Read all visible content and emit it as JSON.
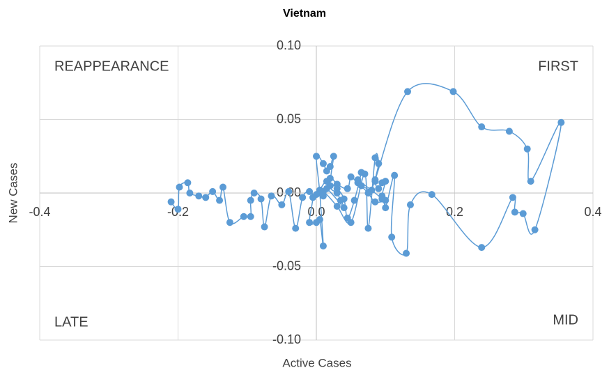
{
  "chart_data": {
    "type": "scatter",
    "title": "Vietnam",
    "x_label": "Active Cases",
    "y_label": "New Cases",
    "annotations": [
      "REAPPEARANCE",
      "FIRST",
      "LATE",
      "MID"
    ],
    "xlim": [
      -0.4,
      0.4
    ],
    "ylim": [
      -0.1,
      0.1
    ],
    "xticks": [
      -0.4,
      -0.2,
      {
        "value": 0,
        "label": "0.0"
      },
      0.2,
      0.4
    ],
    "yticks": [
      {
        "value": 0.1,
        "label": "0.10"
      },
      {
        "value": 0.05,
        "label": "0.05"
      },
      {
        "value": 0,
        "label": "0.00"
      },
      {
        "value": -0.05,
        "label": "-0.05"
      },
      {
        "value": -0.1,
        "label": "-0.10"
      }
    ],
    "grid": true,
    "smooth": true,
    "series": [
      {
        "color": "#5b9bd5",
        "x": [
          -0.21,
          -0.2,
          -0.198,
          -0.186,
          -0.183,
          -0.17,
          -0.16,
          -0.15,
          -0.14,
          -0.135,
          -0.125,
          -0.105,
          -0.095,
          -0.095,
          -0.09,
          -0.08,
          -0.075,
          -0.065,
          -0.05,
          -0.04,
          -0.03,
          -0.02,
          -0.01,
          -0.005,
          -0.01,
          0.0,
          0.005,
          0.01,
          0.005,
          0.0,
          0.01,
          0.015,
          0.02,
          0.025,
          0.02,
          0.03,
          0.035,
          0.04,
          0.015,
          0.01,
          0.02,
          0.03,
          0.045,
          0.05,
          0.06,
          0.065,
          0.055,
          0.045,
          0.04,
          0.03,
          0.015,
          0.005,
          0.0,
          0.01,
          0.03,
          0.05,
          0.07,
          0.075,
          0.085,
          0.09,
          0.085,
          0.09,
          0.095,
          0.1,
          0.095,
          0.1,
          0.085,
          0.075,
          0.065,
          0.08,
          0.085,
          0.132,
          0.198,
          0.239,
          0.279,
          0.305,
          0.31,
          0.354,
          0.316,
          0.299,
          0.287,
          0.284,
          0.239,
          0.167,
          0.136,
          0.13,
          0.109,
          0.113,
          0.1,
          0.095,
          0.06
        ],
        "values": [
          -0.006,
          -0.011,
          0.004,
          0.007,
          0.0,
          -0.002,
          -0.003,
          0.001,
          -0.005,
          0.004,
          -0.02,
          -0.016,
          -0.016,
          -0.005,
          0.0,
          -0.004,
          -0.023,
          -0.002,
          -0.008,
          0.001,
          -0.024,
          -0.003,
          0.001,
          -0.003,
          -0.02,
          -0.02,
          -0.018,
          -0.036,
          0.0,
          0.025,
          0.02,
          0.015,
          0.018,
          0.025,
          0.005,
          0.0,
          -0.005,
          -0.01,
          0.003,
          -0.002,
          0.01,
          0.006,
          0.003,
          0.011,
          0.007,
          0.014,
          -0.005,
          -0.017,
          -0.004,
          0.003,
          0.008,
          0.002,
          -0.001,
          0.001,
          -0.009,
          -0.02,
          0.013,
          -0.024,
          0.024,
          0.02,
          0.008,
          0.003,
          0.007,
          0.008,
          -0.002,
          -0.005,
          -0.006,
          0.0,
          0.005,
          0.002,
          0.009,
          0.069,
          0.069,
          0.045,
          0.042,
          0.03,
          0.008,
          0.048,
          -0.025,
          -0.014,
          -0.013,
          -0.003,
          -0.037,
          -0.001,
          -0.008,
          -0.041,
          -0.03,
          0.012,
          -0.01,
          -0.004,
          0.009
        ]
      }
    ]
  }
}
